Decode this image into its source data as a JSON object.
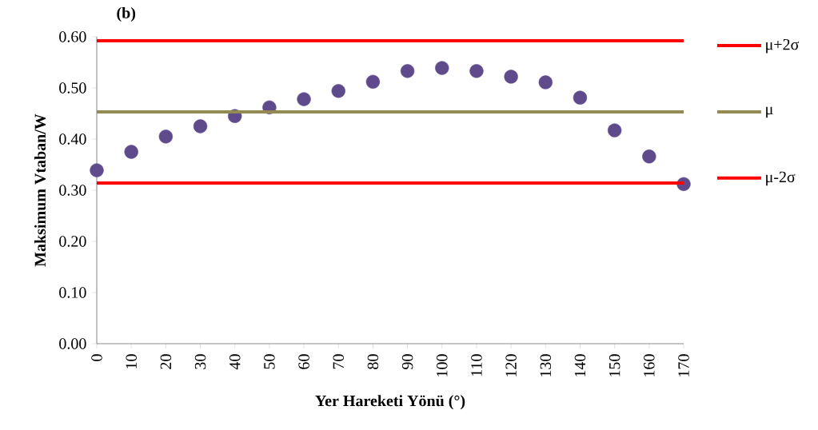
{
  "chart_data": {
    "type": "scatter",
    "title": "(b)",
    "xlabel": "Yer Hareketi Yönü (°)",
    "ylabel": "Maksimum Vtaban/W",
    "x": [
      0,
      10,
      20,
      30,
      40,
      50,
      60,
      70,
      80,
      90,
      100,
      110,
      120,
      130,
      140,
      150,
      160,
      170
    ],
    "series": [
      {
        "color": "#5f4b8b",
        "marker": "circle",
        "values": [
          0.339,
          0.375,
          0.405,
          0.425,
          0.445,
          0.462,
          0.478,
          0.494,
          0.512,
          0.533,
          0.539,
          0.533,
          0.522,
          0.511,
          0.481,
          0.417,
          0.366,
          0.312
        ]
      },
      {
        "type": "line",
        "name": "μ+2σ",
        "color": "#ff0000",
        "marker": "none",
        "values": [
          0.592,
          0.592,
          0.592,
          0.592,
          0.592,
          0.592,
          0.592,
          0.592,
          0.592,
          0.592,
          0.592,
          0.592,
          0.592,
          0.592,
          0.592,
          0.592,
          0.592,
          0.592
        ]
      },
      {
        "type": "line",
        "name": "μ",
        "color": "#948a54",
        "marker": "none",
        "values": [
          0.453,
          0.453,
          0.453,
          0.453,
          0.453,
          0.453,
          0.453,
          0.453,
          0.453,
          0.453,
          0.453,
          0.453,
          0.453,
          0.453,
          0.453,
          0.453,
          0.453,
          0.453
        ]
      },
      {
        "type": "line",
        "name": "μ-2σ",
        "color": "#ff0000",
        "marker": "none",
        "values": [
          0.314,
          0.314,
          0.314,
          0.314,
          0.314,
          0.314,
          0.314,
          0.314,
          0.314,
          0.314,
          0.314,
          0.314,
          0.314,
          0.314,
          0.314,
          0.314,
          0.314,
          0.314
        ]
      }
    ],
    "xlim": [
      0,
      170
    ],
    "xticks": [
      0,
      10,
      20,
      30,
      40,
      50,
      60,
      70,
      80,
      90,
      100,
      110,
      120,
      130,
      140,
      150,
      160,
      170
    ],
    "ylim": [
      0,
      0.6
    ],
    "yticks": [
      {
        "value": 0,
        "label": "0.00"
      },
      {
        "value": 0.1,
        "label": "0.10"
      },
      {
        "value": 0.2,
        "label": "0.20"
      },
      {
        "value": 0.3,
        "label": "0.30"
      },
      {
        "value": 0.4,
        "label": "0.40"
      },
      {
        "value": 0.5,
        "label": "0.50"
      },
      {
        "value": 0.6,
        "label": "0.60"
      }
    ],
    "legend": "right",
    "grid": false
  }
}
